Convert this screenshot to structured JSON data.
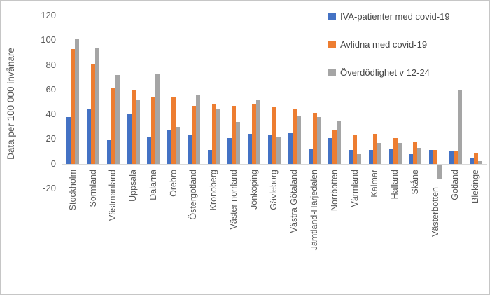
{
  "chart_data": {
    "type": "bar",
    "title": "",
    "ylabel": "Data per 100 000 invånare",
    "ylim": [
      -20,
      120
    ],
    "yticks": [
      120,
      100,
      80,
      60,
      40,
      20,
      0,
      -20
    ],
    "grid": false,
    "legend_position": "top-right",
    "categories": [
      "Stockholm",
      "Sörmland",
      "Västmanland",
      "Uppsala",
      "Dalarna",
      "Örebro",
      "Östergötland",
      "Kronoberg",
      "Väster norrland",
      "Jönköping",
      "Gävleborg",
      "Västra Götaland",
      "Jämtland-Härjedalen",
      "Norrbotten",
      "Värmland",
      "Kalmar",
      "Halland",
      "Skåne",
      "Västerbotten",
      "Gotland",
      "Blekinge"
    ],
    "series": [
      {
        "name": "IVA-patienter med covid-19",
        "color": "#4472C4",
        "values": [
          38,
          44,
          19,
          40,
          22,
          27,
          23,
          11,
          21,
          24,
          23,
          25,
          12,
          21,
          11,
          11,
          12,
          8,
          11,
          10,
          5
        ]
      },
      {
        "name": "Avlidna med covid-19",
        "color": "#ED7D31",
        "values": [
          93,
          81,
          61,
          60,
          54,
          54,
          47,
          48,
          47,
          48,
          46,
          44,
          41,
          27,
          23,
          24,
          21,
          18,
          11,
          10,
          9
        ]
      },
      {
        "name": "Överdödlighet v 12-24",
        "color": "#A5A5A5",
        "values": [
          101,
          94,
          72,
          52,
          73,
          30,
          56,
          44,
          34,
          52,
          22,
          39,
          38,
          35,
          8,
          17,
          17,
          13,
          -12,
          60,
          2
        ]
      }
    ]
  }
}
